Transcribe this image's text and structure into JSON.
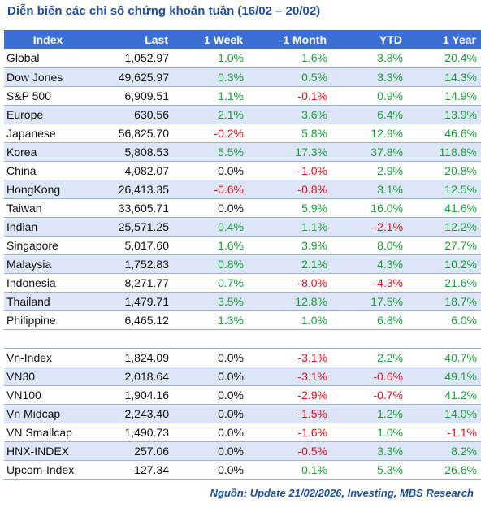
{
  "title": "Diễn biến các chỉ số chứng khoán tuần (16/02 – 20/02)",
  "headers": [
    "Index",
    "Last",
    "1 Week",
    "1 Month",
    "YTD",
    "1 Year"
  ],
  "rows": [
    [
      "Global",
      "1,052.97",
      "1.0%",
      "1.6%",
      "3.8%",
      "20.4%"
    ],
    [
      "Dow Jones",
      "49,625.97",
      "0.3%",
      "0.5%",
      "3.3%",
      "14.3%"
    ],
    [
      "S&P 500",
      "6,909.51",
      "1.1%",
      "-0.1%",
      "0.9%",
      "14.9%"
    ],
    [
      "Europe",
      "630.56",
      "2.1%",
      "3.6%",
      "6.4%",
      "13.9%"
    ],
    [
      "Japanese",
      "56,825.70",
      "-0.2%",
      "5.8%",
      "12.9%",
      "46.6%"
    ],
    [
      "Korea",
      "5,808.53",
      "5.5%",
      "17.3%",
      "37.8%",
      "118.8%"
    ],
    [
      "China",
      "4,082.07",
      "0.0%",
      "-1.0%",
      "2.9%",
      "20.8%"
    ],
    [
      "HongKong",
      "26,413.35",
      "-0.6%",
      "-0.8%",
      "3.1%",
      "12.5%"
    ],
    [
      "Taiwan",
      "33,605.71",
      "0.0%",
      "5.9%",
      "16.0%",
      "41.6%"
    ],
    [
      "Indian",
      "25,571.25",
      "0.4%",
      "1.1%",
      "-2.1%",
      "12.2%"
    ],
    [
      "Singapore",
      "5,017.60",
      "1.6%",
      "3.9%",
      "8.0%",
      "27.7%"
    ],
    [
      "Malaysia",
      "1,752.83",
      "0.8%",
      "2.1%",
      "4.3%",
      "10.2%"
    ],
    [
      "Indonesia",
      "8,271.77",
      "0.7%",
      "-8.0%",
      "-4.3%",
      "21.6%"
    ],
    [
      "Thailand",
      "1,479.71",
      "3.5%",
      "12.8%",
      "17.5%",
      "18.7%"
    ],
    [
      "Philippine",
      "6,465.12",
      "1.3%",
      "1.0%",
      "6.8%",
      "6.0%"
    ],
    null,
    [
      "Vn-Index",
      "1,824.09",
      "0.0%",
      "-3.1%",
      "2.2%",
      "40.7%"
    ],
    [
      "VN30",
      "2,018.64",
      "0.0%",
      "-3.1%",
      "-0.6%",
      "49.1%"
    ],
    [
      "VN100",
      "1,904.16",
      "0.0%",
      "-2.9%",
      "-0.7%",
      "41.2%"
    ],
    [
      "Vn Midcap",
      "2,243.40",
      "0.0%",
      "-1.5%",
      "1.2%",
      "14.0%"
    ],
    [
      "VN Smallcap",
      "1,490.73",
      "0.0%",
      "-1.6%",
      "1.0%",
      "-1.1%"
    ],
    [
      "HNX-INDEX",
      "257.06",
      "0.0%",
      "-0.5%",
      "3.3%",
      "8.2%"
    ],
    [
      "Upcom-Index",
      "127.34",
      "0.0%",
      "0.1%",
      "5.3%",
      "26.6%"
    ]
  ],
  "footer": "Nguồn: Update  21/02/2026, Investing, MBS Research",
  "colors": {
    "header_bg": "#3c6fd4",
    "title": "#1f4e9c",
    "positive": "#1a9e3b",
    "negative": "#e0101c",
    "row_alt": "#dde6f7"
  }
}
